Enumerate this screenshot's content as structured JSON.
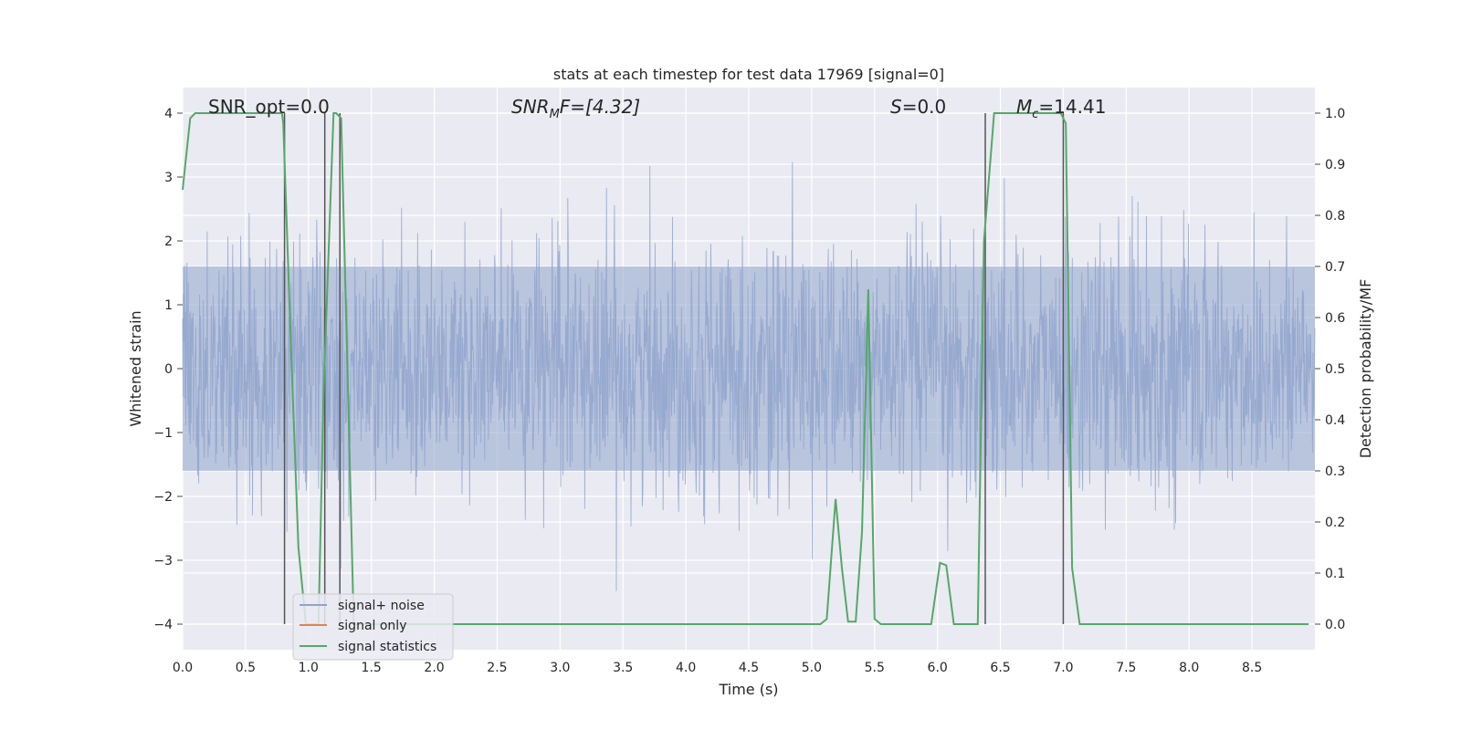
{
  "chart_data": {
    "type": "line",
    "title": "stats at each timestep for test data 17969 [signal=0]",
    "xlabel": "Time (s)",
    "ylabel_left": "Whitened strain",
    "ylabel_right": "Detection probability/MF",
    "xlim": [
      0.0,
      9.0
    ],
    "ylim_left": [
      -4.4,
      4.4
    ],
    "ylim_right": [
      -0.05,
      1.05
    ],
    "x_ticks": [
      "0.0",
      "0.5",
      "1.0",
      "1.5",
      "2.0",
      "2.5",
      "3.0",
      "3.5",
      "4.0",
      "4.5",
      "5.0",
      "5.5",
      "6.0",
      "6.5",
      "7.0",
      "7.5",
      "8.0",
      "8.5"
    ],
    "y_left_ticks": [
      "−4",
      "−3",
      "−2",
      "−1",
      "0",
      "1",
      "2",
      "3",
      "4"
    ],
    "y_right_ticks": [
      "0.0",
      "0.1",
      "0.2",
      "0.3",
      "0.4",
      "0.5",
      "0.6",
      "0.7",
      "0.8",
      "0.9",
      "1.0"
    ],
    "grid": true,
    "background": "#eaeaf2",
    "legend_position": "lower-left",
    "annotations": {
      "snr_opt": "SNR_opt=0.0",
      "snr_mf_base": "SNR",
      "snr_mf_sub": "M",
      "snr_mf_rest": "F=[4.32]",
      "s_italic": "S",
      "s_rest": "=0.0",
      "mc_base": "M",
      "mc_sub": "c",
      "mc_rest": "=14.41"
    },
    "series": [
      {
        "name": "signal+ noise",
        "color": "#8fa4cc",
        "description": "whitened noise strain, approx. within ±1.6 with spikes up to ±4",
        "envelope_core": 1.6
      },
      {
        "name": "signal only",
        "color": "#dd8452",
        "values": []
      },
      {
        "name": "signal statistics",
        "color": "#55a868",
        "axis": "right",
        "x": [
          0.0,
          0.06,
          0.1,
          0.15,
          0.79,
          0.8,
          0.86,
          0.92,
          0.98,
          1.04,
          1.08,
          1.12,
          1.2,
          1.22,
          1.26,
          1.31,
          1.36,
          1.4,
          5.07,
          5.12,
          5.19,
          5.24,
          5.29,
          5.35,
          5.4,
          5.45,
          5.5,
          5.55,
          5.6,
          5.9,
          5.95,
          6.02,
          6.07,
          6.13,
          6.32,
          6.37,
          6.45,
          6.98,
          7.02,
          7.07,
          7.13,
          8.95
        ],
        "y": [
          0.85,
          0.99,
          1.0,
          1.0,
          1.0,
          0.98,
          0.55,
          0.15,
          0.0,
          0.0,
          0.0,
          0.45,
          1.0,
          1.0,
          0.99,
          0.5,
          0.0,
          0.0,
          0.0,
          0.01,
          0.245,
          0.11,
          0.005,
          0.005,
          0.18,
          0.655,
          0.01,
          0.0,
          0.0,
          0.0,
          0.0,
          0.12,
          0.115,
          0.0,
          0.0,
          0.75,
          1.0,
          1.0,
          0.98,
          0.11,
          0.0,
          0.0
        ]
      }
    ],
    "vertical_lines_x": [
      0.81,
      1.13,
      1.25,
      6.38,
      7.0
    ],
    "vertical_line_color": "#555555"
  }
}
